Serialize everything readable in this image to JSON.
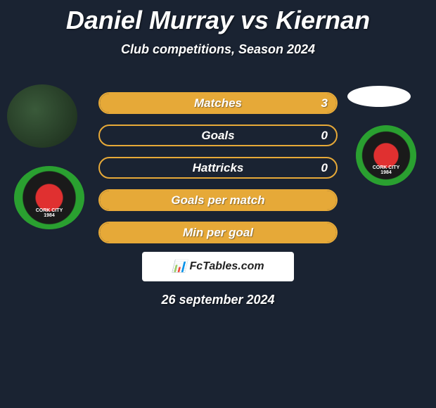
{
  "title": "Daniel Murray vs Kiernan",
  "subtitle": "Club competitions, Season 2024",
  "date": "26 september 2024",
  "brand": "FcTables.com",
  "colors": {
    "bar_border": "#e6a938",
    "fill_matches": "#e6a938",
    "fill_goals": "#e6a938",
    "fill_hattricks": "#e6a938",
    "fill_gpm": "#e6a938",
    "fill_mpg": "#e6a938",
    "background": "#1a2332"
  },
  "stats": [
    {
      "label": "Matches",
      "value": "3",
      "fill_width": "100%"
    },
    {
      "label": "Goals",
      "value": "0",
      "fill_width": "0%"
    },
    {
      "label": "Hattricks",
      "value": "0",
      "fill_width": "0%"
    },
    {
      "label": "Goals per match",
      "value": "",
      "fill_width": "100%"
    },
    {
      "label": "Min per goal",
      "value": "",
      "fill_width": "100%"
    }
  ],
  "badges": {
    "left2_text": "CORK CITY",
    "left2_year": "1984",
    "right2_text": "CORK CITY",
    "right2_year": "1984"
  }
}
